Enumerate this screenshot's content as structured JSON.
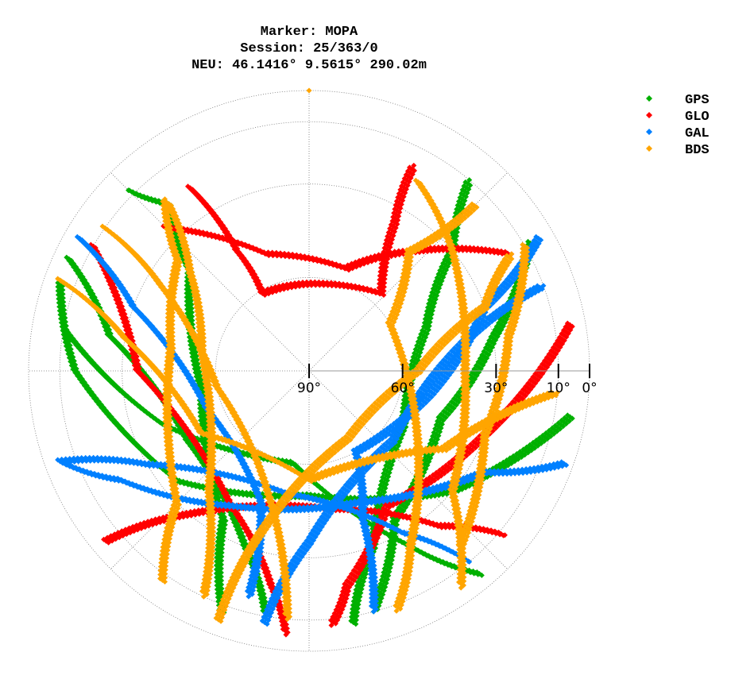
{
  "chart_data": {
    "type": "scatter",
    "subtype": "polar skyplot (azimuth clockwise from north, elevation radial)",
    "title_lines": [
      "Marker: MOPA",
      "Session: 25/363/0",
      "NEU: 46.1416° 9.5615° 290.02m"
    ],
    "elevation_ticks": [
      90,
      60,
      30,
      10,
      0
    ],
    "elevation_tick_labels": [
      "90°",
      "60°",
      "30°",
      "10°",
      "0°"
    ],
    "elevation_range": [
      0,
      90
    ],
    "azimuth_gridlines_deg": [
      0,
      45,
      90,
      135,
      180,
      225,
      270,
      315
    ],
    "grid": true,
    "legend_position": "top-right",
    "series": [
      {
        "name": "GPS",
        "color": "#00b000",
        "tracks": [
          [
            [
              100,
              5
            ],
            [
              130,
              30
            ],
            [
              180,
              50
            ],
            [
              230,
              35
            ],
            [
              270,
              15
            ],
            [
              290,
              5
            ]
          ],
          [
            [
              170,
              8
            ],
            [
              160,
              30
            ],
            [
              120,
              55
            ],
            [
              70,
              50
            ],
            [
              50,
              30
            ],
            [
              40,
              10
            ]
          ],
          [
            [
              200,
              8
            ],
            [
              210,
              35
            ],
            [
              260,
              55
            ],
            [
              310,
              40
            ],
            [
              320,
              20
            ],
            [
              315,
              8
            ]
          ],
          [
            [
              60,
              8
            ],
            [
              80,
              30
            ],
            [
              110,
              45
            ],
            [
              150,
              35
            ],
            [
              165,
              10
            ]
          ],
          [
            [
              295,
              5
            ],
            [
              280,
              25
            ],
            [
              240,
              45
            ],
            [
              200,
              30
            ],
            [
              190,
              10
            ]
          ],
          [
            [
              140,
              5
            ],
            [
              150,
              25
            ],
            [
              190,
              60
            ],
            [
              250,
              40
            ],
            [
              280,
              10
            ]
          ]
        ]
      },
      {
        "name": "GLO",
        "color": "#ff0000",
        "tracks": [
          [
            [
              327,
              20
            ],
            [
              329,
              45
            ],
            [
              329,
              61
            ],
            [
              0,
              62
            ],
            [
              43,
              56
            ],
            [
              30,
              35
            ],
            [
              27,
              16
            ]
          ],
          [
            [
              300,
              10
            ],
            [
              270,
              35
            ],
            [
              210,
              40
            ],
            [
              190,
              20
            ],
            [
              185,
              5
            ]
          ],
          [
            [
              80,
              5
            ],
            [
              110,
              30
            ],
            [
              150,
              40
            ],
            [
              170,
              20
            ],
            [
              175,
              8
            ]
          ],
          [
            [
              315,
              25
            ],
            [
              340,
              50
            ],
            [
              20,
              55
            ],
            [
              40,
              40
            ],
            [
              60,
              15
            ]
          ],
          [
            [
              230,
              5
            ],
            [
              220,
              30
            ],
            [
              170,
              45
            ],
            [
              140,
              25
            ],
            [
              130,
              8
            ]
          ]
        ]
      },
      {
        "name": "GAL",
        "color": "#0080ff",
        "tracks": [
          [
            [
              110,
              3
            ],
            [
              120,
              25
            ],
            [
              160,
              45
            ],
            [
              210,
              40
            ],
            [
              240,
              20
            ],
            [
              250,
              5
            ]
          ],
          [
            [
              190,
              8
            ],
            [
              180,
              35
            ],
            [
              130,
              55
            ],
            [
              80,
              40
            ],
            [
              70,
              10
            ]
          ],
          [
            [
              250,
              5
            ],
            [
              240,
              30
            ],
            [
              190,
              50
            ],
            [
              150,
              30
            ],
            [
              140,
              10
            ]
          ],
          [
            [
              300,
              5
            ],
            [
              290,
              30
            ],
            [
              250,
              55
            ],
            [
              200,
              45
            ],
            [
              195,
              15
            ]
          ],
          [
            [
              60,
              5
            ],
            [
              70,
              30
            ],
            [
              100,
              50
            ],
            [
              150,
              60
            ],
            [
              160,
              40
            ],
            [
              165,
              10
            ]
          ]
        ]
      },
      {
        "name": "BDS",
        "color": "#ffa500",
        "tracks": [
          [
            [
              290,
              5
            ],
            [
              280,
              30
            ],
            [
              240,
              50
            ],
            [
              180,
              55
            ],
            [
              120,
              40
            ],
            [
              95,
              10
            ]
          ],
          [
            [
              305,
              10
            ],
            [
              300,
              35
            ],
            [
              260,
              60
            ],
            [
              200,
              50
            ],
            [
              185,
              10
            ]
          ],
          [
            [
              45,
              15
            ],
            [
              40,
              40
            ],
            [
              60,
              60
            ],
            [
              120,
              50
            ],
            [
              150,
              25
            ],
            [
              160,
              8
            ]
          ],
          [
            [
              320,
              20
            ],
            [
              310,
              40
            ],
            [
              280,
              55
            ],
            [
              220,
              40
            ],
            [
              205,
              10
            ]
          ],
          [
            [
              30,
              20
            ],
            [
              50,
              30
            ],
            [
              90,
              40
            ],
            [
              130,
              30
            ],
            [
              145,
              5
            ]
          ],
          [
            [
              215,
              8
            ],
            [
              225,
              30
            ],
            [
              280,
              45
            ],
            [
              310,
              35
            ],
            [
              320,
              18
            ]
          ],
          [
            [
              60,
              10
            ],
            [
              80,
              25
            ],
            [
              110,
              30
            ],
            [
              140,
              15
            ]
          ],
          [
            [
              200,
              5
            ],
            [
              195,
              40
            ],
            [
              150,
              65
            ],
            [
              90,
              55
            ],
            [
              70,
              30
            ],
            [
              60,
              15
            ]
          ],
          [
            [
              0,
              0
            ]
          ]
        ]
      }
    ]
  }
}
